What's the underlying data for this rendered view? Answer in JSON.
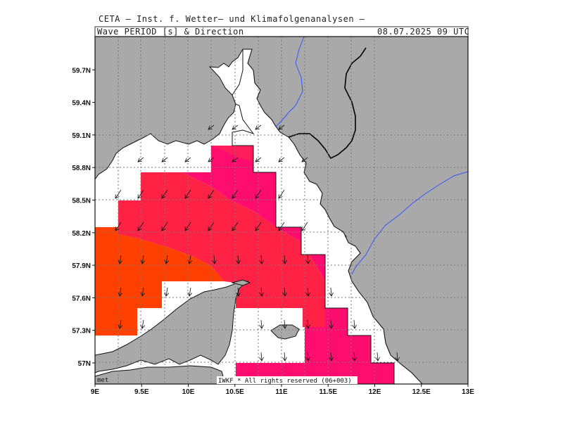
{
  "header": {
    "institute": "CETA – Inst. f. Wetter– und Klimafolgenanalysen –",
    "field": "Wave_PERIOD_[s]_&_Direction",
    "datetime": "08.07.2025 09 UTC"
  },
  "footer": {
    "met_label": "met",
    "copyright": "IWKF * All rights reserved (06+003)"
  },
  "map": {
    "type": "map",
    "lon_range": [
      9,
      13
    ],
    "lat_range": [
      56.83,
      59.98
    ],
    "x_tick_labels": [
      "9E",
      "9.5E",
      "10E",
      "10.5E",
      "11E",
      "11.5E",
      "12E",
      "12.5E",
      "13E"
    ],
    "y_tick_labels": [
      "57N",
      "57.3N",
      "57.6N",
      "57.9N",
      "58.2N",
      "58.5N",
      "58.8N",
      "59.1N",
      "59.4N",
      "59.7N"
    ],
    "colors": {
      "land": "#a9a9a9",
      "sea": "#ffffff",
      "orange": "#ff4000",
      "red": "#ff2244",
      "magenta": "#ff0d6e",
      "river": "#3355ff"
    }
  }
}
